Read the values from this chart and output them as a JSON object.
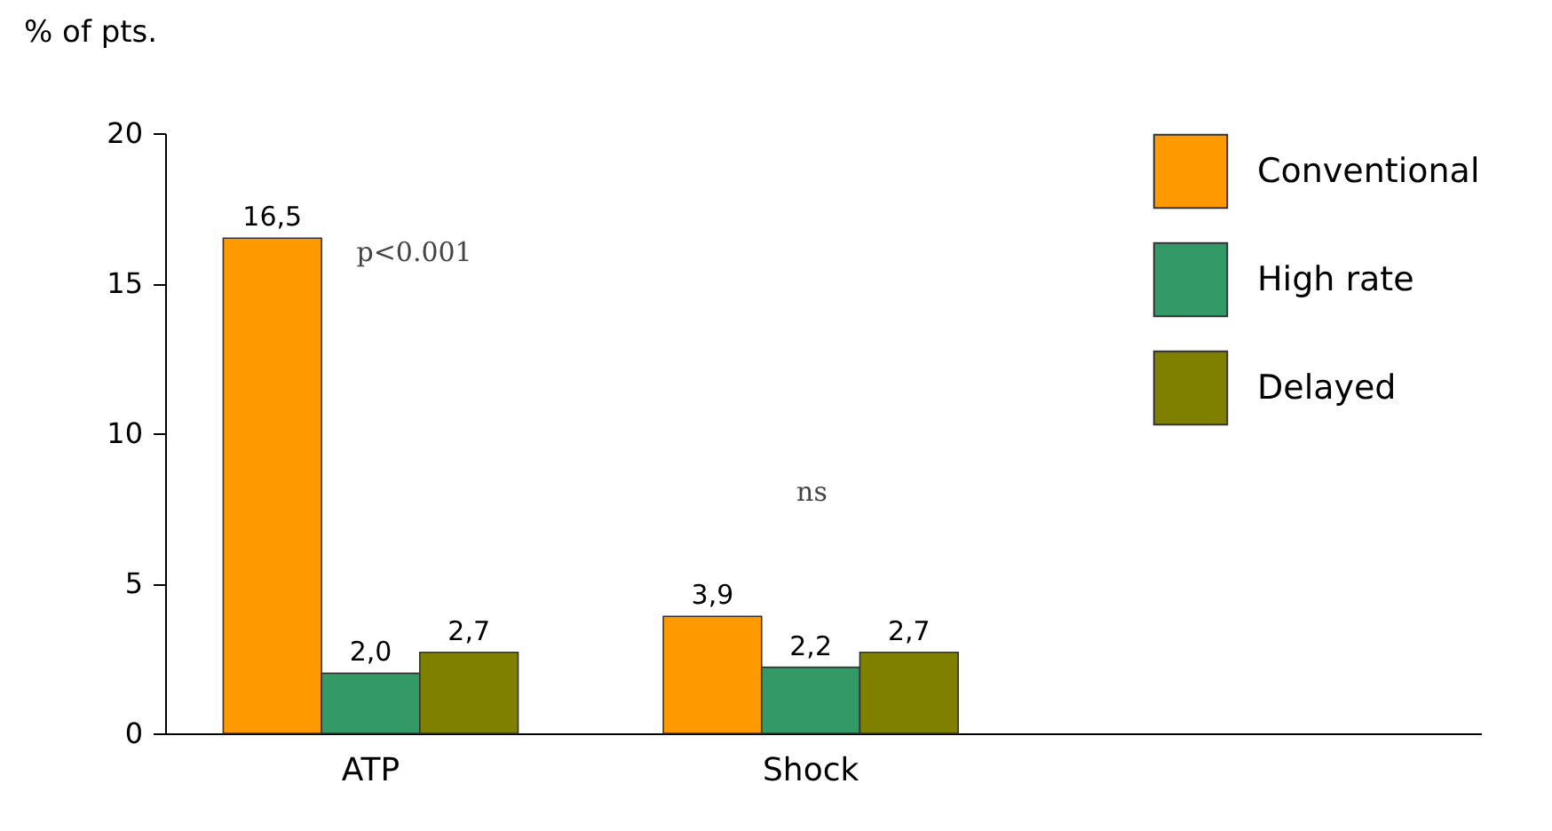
{
  "chart_data": {
    "type": "bar",
    "ylabel": "% of pts.",
    "categories": [
      "ATP",
      "Shock"
    ],
    "series": [
      {
        "name": "Conventional",
        "color": "#ff9900",
        "values": [
          16.5,
          3.9
        ],
        "value_labels": [
          "16,5",
          "3,9"
        ]
      },
      {
        "name": "High rate",
        "color": "#339966",
        "values": [
          2.0,
          2.2
        ],
        "value_labels": [
          "2,0",
          "2,2"
        ]
      },
      {
        "name": "Delayed",
        "color": "#808000",
        "values": [
          2.7,
          2.7
        ],
        "value_labels": [
          "2,7",
          "2,7"
        ]
      }
    ],
    "ylim": [
      0,
      20
    ],
    "yticks": [
      0,
      5,
      10,
      15,
      20
    ],
    "grid": false,
    "legend": "top right",
    "annotations": [
      "p<0.001",
      "ns"
    ]
  }
}
